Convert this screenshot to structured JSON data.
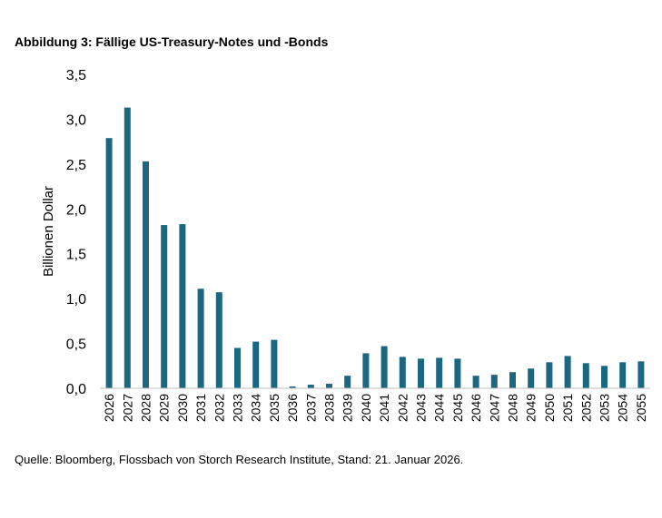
{
  "figure": {
    "title": "Abbildung 3: Fällige US-Treasury-Notes und -Bonds",
    "source": "Quelle: Bloomberg, Flossbach von Storch Research Institute, Stand: 21. Januar 2026."
  },
  "colors": {
    "bar": "#1b6680",
    "axis": "#bfbfbf"
  },
  "chart_data": {
    "type": "bar",
    "title": "Abbildung 3: Fällige US-Treasury-Notes und -Bonds",
    "xlabel": "",
    "ylabel": "Billionen Dollar",
    "ylim": [
      0,
      3.5
    ],
    "yticks": [
      "0,0",
      "0,5",
      "1,0",
      "1,5",
      "2,0",
      "2,5",
      "3,0",
      "3,5"
    ],
    "grid": false,
    "categories": [
      "2026",
      "2027",
      "2028",
      "2029",
      "2030",
      "2031",
      "2032",
      "2033",
      "2034",
      "2035",
      "2036",
      "2037",
      "2038",
      "2039",
      "2040",
      "2041",
      "2042",
      "2043",
      "2044",
      "2045",
      "2046",
      "2047",
      "2048",
      "2049",
      "2050",
      "2051",
      "2052",
      "2053",
      "2054",
      "2055"
    ],
    "values": [
      2.79,
      3.13,
      2.53,
      1.82,
      1.83,
      1.11,
      1.07,
      0.45,
      0.52,
      0.54,
      0.02,
      0.04,
      0.05,
      0.14,
      0.39,
      0.47,
      0.35,
      0.33,
      0.34,
      0.33,
      0.14,
      0.15,
      0.18,
      0.22,
      0.29,
      0.36,
      0.28,
      0.25,
      0.29,
      0.3
    ]
  }
}
